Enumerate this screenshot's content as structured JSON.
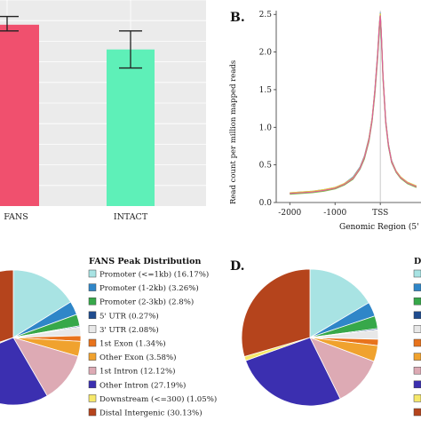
{
  "chart_data": [
    {
      "type": "bar",
      "categories": [
        "FANS",
        "INTACT"
      ],
      "values": [
        0.88,
        0.76
      ],
      "error_bars": [
        [
          0.85,
          0.92
        ],
        [
          0.67,
          0.85
        ]
      ],
      "ylim": [
        0,
        1
      ],
      "grid": true,
      "colors": [
        "#f0506e",
        "#5ef0b8"
      ]
    },
    {
      "type": "line",
      "panel_label": "B.",
      "xlabel": "Genomic Region (5' ",
      "ylabel": "Read count per million mapped reads",
      "x_ticks": [
        "-2000",
        "-1000",
        "TSS"
      ],
      "y_ticks": [
        "0.0",
        "0.5",
        "1.0",
        "1.5",
        "2.0",
        "2.5"
      ],
      "xlim": [
        -2300,
        900
      ],
      "ylim": [
        0,
        2.55
      ],
      "x": [
        -2000,
        -1750,
        -1500,
        -1250,
        -1000,
        -800,
        -600,
        -450,
        -350,
        -250,
        -180,
        -120,
        -60,
        -20,
        0,
        20,
        60,
        120,
        180,
        250,
        350,
        450,
        600,
        800
      ],
      "series": [
        {
          "color": "#4a86c5",
          "values": [
            0.13,
            0.14,
            0.15,
            0.17,
            0.2,
            0.25,
            0.34,
            0.47,
            0.62,
            0.86,
            1.13,
            1.5,
            1.98,
            2.38,
            2.52,
            2.3,
            1.7,
            1.1,
            0.78,
            0.56,
            0.42,
            0.34,
            0.27,
            0.22
          ]
        },
        {
          "color": "#e07b39",
          "values": [
            0.12,
            0.13,
            0.14,
            0.16,
            0.19,
            0.24,
            0.32,
            0.45,
            0.6,
            0.83,
            1.1,
            1.46,
            1.93,
            2.33,
            2.47,
            2.26,
            1.66,
            1.07,
            0.76,
            0.54,
            0.41,
            0.33,
            0.26,
            0.21
          ]
        },
        {
          "color": "#9b59b6",
          "values": [
            0.12,
            0.13,
            0.14,
            0.16,
            0.19,
            0.24,
            0.33,
            0.46,
            0.61,
            0.84,
            1.11,
            1.48,
            1.95,
            2.36,
            2.5,
            2.28,
            1.68,
            1.08,
            0.77,
            0.55,
            0.41,
            0.33,
            0.26,
            0.21
          ]
        },
        {
          "color": "#e8d23a",
          "values": [
            0.13,
            0.14,
            0.15,
            0.17,
            0.2,
            0.25,
            0.33,
            0.46,
            0.61,
            0.85,
            1.12,
            1.49,
            1.96,
            2.37,
            2.51,
            2.29,
            1.69,
            1.09,
            0.77,
            0.55,
            0.42,
            0.34,
            0.27,
            0.22
          ]
        },
        {
          "color": "#7fbf4d",
          "values": [
            0.11,
            0.12,
            0.13,
            0.15,
            0.18,
            0.23,
            0.31,
            0.44,
            0.58,
            0.81,
            1.08,
            1.43,
            1.9,
            2.29,
            2.43,
            2.22,
            1.63,
            1.05,
            0.74,
            0.53,
            0.4,
            0.32,
            0.25,
            0.2
          ]
        },
        {
          "color": "#e05a9b",
          "values": [
            0.12,
            0.13,
            0.14,
            0.16,
            0.19,
            0.24,
            0.32,
            0.45,
            0.6,
            0.83,
            1.1,
            1.47,
            1.94,
            2.35,
            2.48,
            2.27,
            1.67,
            1.07,
            0.76,
            0.54,
            0.41,
            0.33,
            0.26,
            0.21
          ]
        }
      ]
    },
    {
      "type": "pie",
      "title": "FANS Peak Distribution",
      "labels": [
        "Promoter (<=1kb) (16.17%)",
        "Promoter (1-2kb) (3.26%)",
        "Promoter (2-3kb) (2.8%)",
        "5' UTR (0.27%)",
        "3' UTR (2.08%)",
        "1st Exon (1.34%)",
        "Other Exon (3.58%)",
        "1st Intron (12.12%)",
        "Other Intron (27.19%)",
        "Downstream (<=300) (1.05%)",
        "Distal Intergenic (30.13%)"
      ],
      "values": [
        16.17,
        3.26,
        2.8,
        0.27,
        2.08,
        1.34,
        3.58,
        12.12,
        27.19,
        1.05,
        30.13
      ],
      "colors": [
        "#a8e3e3",
        "#2f86c8",
        "#37a84a",
        "#1f4c8f",
        "#e8e8e8",
        "#e8731c",
        "#f0a22e",
        "#ddaab4",
        "#3b2fb0",
        "#f6e86a",
        "#b5441c"
      ]
    },
    {
      "type": "pie",
      "panel_label": "D.",
      "values": [
        16.5,
        3.4,
        3.0,
        0.3,
        2.2,
        1.5,
        3.8,
        12.0,
        26.8,
        1.0,
        29.5
      ],
      "colors": [
        "#a8e3e3",
        "#2f86c8",
        "#37a84a",
        "#1f4c8f",
        "#e8e8e8",
        "#e8731c",
        "#f0a22e",
        "#ddaab4",
        "#3b2fb0",
        "#f6e86a",
        "#b5441c"
      ],
      "legend_partial_title": "D"
    }
  ]
}
